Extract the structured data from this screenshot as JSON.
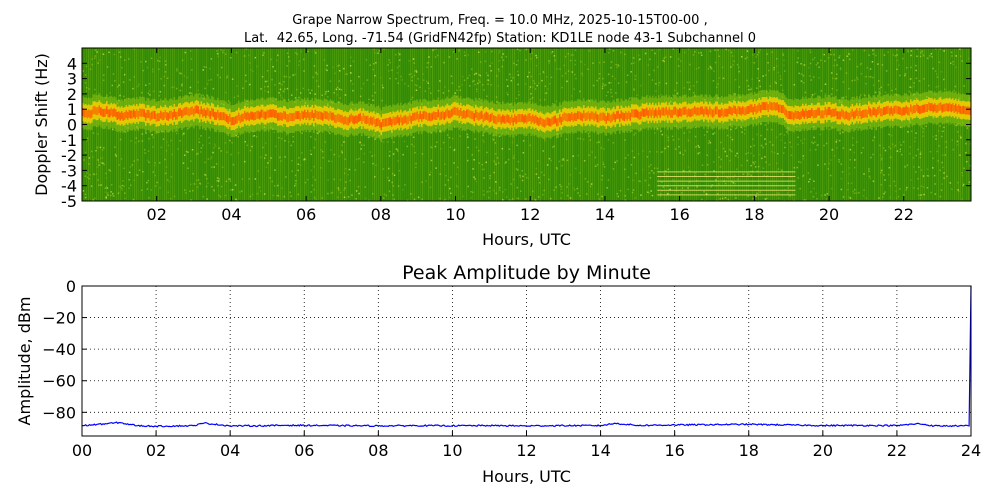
{
  "header": {
    "title_line1": "Grape Narrow Spectrum, Freq. = 10.0 MHz, 2025-10-15T00-00 ,",
    "title_line2": "Lat.  42.65, Long. -71.54 (GridFN42fp) Station: KD1LE node 43-1 Subchannel 0"
  },
  "chart_data": [
    {
      "type": "heatmap",
      "title": "",
      "xlabel": "Hours, UTC",
      "ylabel": "Doppler Shift (Hz)",
      "xlim": [
        0,
        23.8
      ],
      "ylim": [
        -5,
        5
      ],
      "x_ticks": [
        2,
        4,
        6,
        8,
        10,
        12,
        14,
        16,
        18,
        20,
        22
      ],
      "x_tick_labels": [
        "02",
        "04",
        "06",
        "08",
        "10",
        "12",
        "14",
        "16",
        "18",
        "20",
        "22"
      ],
      "y_ticks": [
        4,
        3,
        2,
        1,
        0,
        -1,
        -2,
        -3,
        -4,
        -5
      ],
      "y_tick_labels": [
        "4",
        "3",
        "2",
        "1",
        "0",
        "-1",
        "-2",
        "-3",
        "-4",
        "-5"
      ],
      "grid": false,
      "colors": {
        "background": "#2f8a08",
        "noise": "#8fc414",
        "band": "#ffd000",
        "peak": "#ff5a00"
      },
      "signal_trace": {
        "hours": [
          0,
          0.5,
          1,
          1.5,
          2,
          2.5,
          3,
          3.5,
          4,
          4.5,
          5,
          5.5,
          6,
          6.5,
          7,
          7.5,
          8,
          8.5,
          9,
          9.5,
          10,
          10.5,
          11,
          11.5,
          12,
          12.5,
          13,
          13.5,
          14,
          14.5,
          15,
          15.5,
          16,
          16.5,
          17,
          17.5,
          18,
          18.5,
          19,
          19.5,
          20,
          20.5,
          21,
          21.5,
          22,
          22.5,
          23,
          23.8
        ],
        "doppler_hz": [
          0.7,
          0.9,
          0.6,
          0.7,
          0.5,
          0.7,
          0.9,
          0.7,
          0.3,
          0.6,
          0.7,
          0.5,
          0.6,
          0.6,
          0.3,
          0.4,
          0.0,
          0.3,
          0.5,
          0.6,
          0.8,
          0.6,
          0.4,
          0.3,
          0.4,
          0.1,
          0.5,
          0.6,
          0.4,
          0.6,
          0.7,
          0.8,
          0.8,
          0.9,
          0.8,
          0.9,
          1.0,
          1.2,
          0.6,
          0.7,
          0.8,
          0.6,
          0.8,
          0.9,
          0.9,
          1.1,
          1.1,
          0.9
        ]
      },
      "interference_lines": {
        "x_range": [
          15.4,
          19.1
        ],
        "doppler_hz": [
          -3.1,
          -3.4,
          -3.7,
          -4.0,
          -4.3,
          -4.6
        ]
      }
    },
    {
      "type": "line",
      "title": "Peak Amplitude by Minute",
      "xlabel": "Hours, UTC",
      "ylabel": "Amplitude, dBm",
      "xlim": [
        0,
        24
      ],
      "ylim": [
        -95,
        0
      ],
      "x_ticks": [
        0,
        2,
        4,
        6,
        8,
        10,
        12,
        14,
        16,
        18,
        20,
        22,
        24
      ],
      "x_tick_labels": [
        "00",
        "02",
        "04",
        "06",
        "08",
        "10",
        "12",
        "14",
        "16",
        "18",
        "20",
        "22",
        "24"
      ],
      "y_ticks": [
        0,
        -20,
        -40,
        -60,
        -80
      ],
      "y_tick_labels": [
        "0",
        "−20",
        "−40",
        "−60",
        "−80"
      ],
      "grid": true,
      "series": [
        {
          "color": "#0000ff",
          "x": [
            0,
            1,
            1.5,
            2,
            3,
            3.3,
            4,
            5,
            5.5,
            6,
            7,
            7.5,
            8,
            9,
            10,
            11,
            12,
            13,
            14,
            14.4,
            15,
            16,
            17,
            18,
            19,
            20,
            21,
            22,
            22.6,
            23,
            23.95,
            24
          ],
          "y": [
            -88.5,
            -86.5,
            -88.5,
            -88.8,
            -88.5,
            -86.8,
            -88.6,
            -88.5,
            -88.2,
            -88.3,
            -88.4,
            -88.5,
            -88.6,
            -88.4,
            -88.5,
            -88.4,
            -88.6,
            -88.4,
            -88.4,
            -87.0,
            -88.3,
            -88.0,
            -87.8,
            -87.6,
            -88.0,
            -88.4,
            -88.3,
            -88.4,
            -87.2,
            -88.6,
            -88.6,
            0
          ]
        }
      ]
    }
  ]
}
